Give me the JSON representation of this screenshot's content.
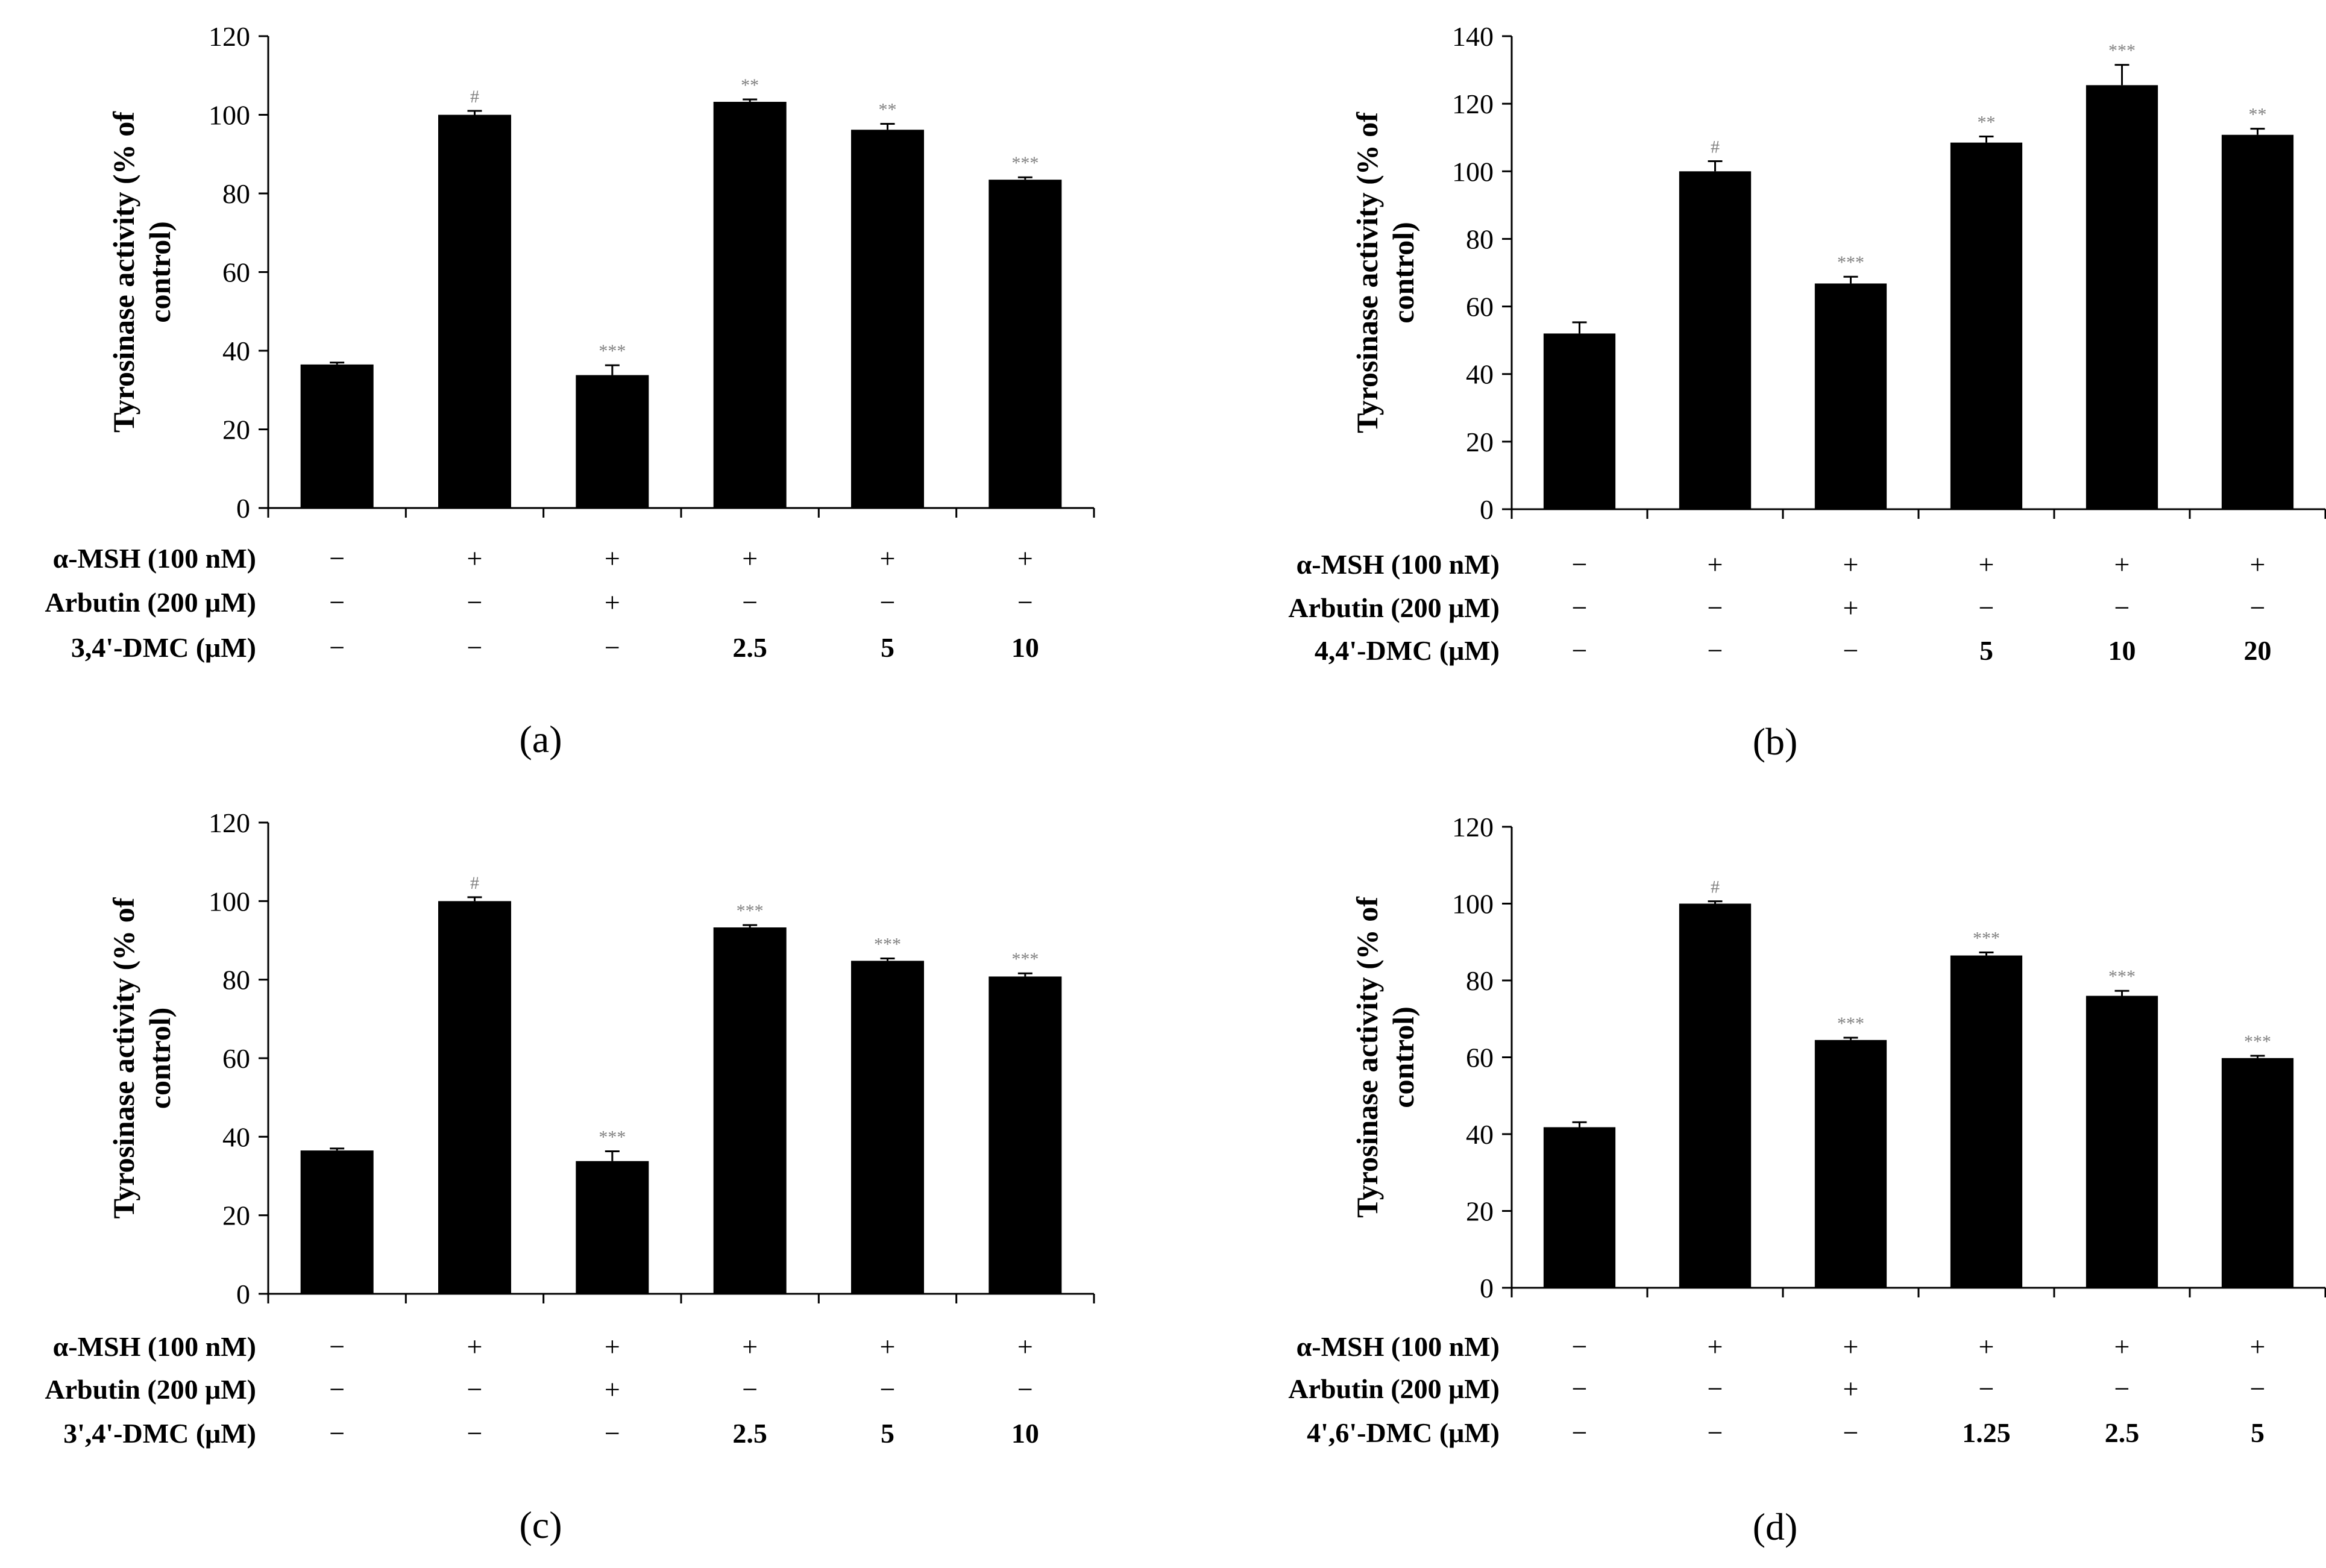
{
  "chart_data": [
    {
      "type": "bar",
      "panel_label": "(a)",
      "ylabel_line1": "Tyrosinase activity (% of",
      "ylabel_line2": "control)",
      "ylim": [
        0,
        120
      ],
      "yticks": [
        "0",
        "20",
        "40",
        "60",
        "80",
        "100",
        "120"
      ],
      "values": [
        36.5,
        100,
        33.8,
        103.3,
        96.2,
        83.5
      ],
      "errors": [
        0.5,
        1.0,
        2.5,
        0.6,
        1.5,
        0.6
      ],
      "significance": [
        "",
        "#",
        "***",
        "**",
        "**",
        "***"
      ],
      "treatment_rows": [
        {
          "label": "α-MSH (100 nM)",
          "cells": [
            "−",
            "+",
            "+",
            "+",
            "+",
            "+"
          ]
        },
        {
          "label": "Arbutin (200 μM)",
          "cells": [
            "−",
            "−",
            "+",
            "−",
            "−",
            "−"
          ]
        },
        {
          "label": "3,4'-DMC (μM)",
          "cells": [
            "−",
            "−",
            "−",
            "2.5",
            "5",
            "10"
          ]
        }
      ]
    },
    {
      "type": "bar",
      "panel_label": "(b)",
      "ylabel_line1": "Tyrosinase activity (% of",
      "ylabel_line2": "control)",
      "ylim": [
        0,
        140
      ],
      "yticks": [
        "0",
        "20",
        "40",
        "60",
        "80",
        "100",
        "120",
        "140"
      ],
      "values": [
        52,
        100,
        66.8,
        108.5,
        125.5,
        110.8
      ],
      "errors": [
        3.3,
        3.0,
        2.0,
        1.8,
        6.0,
        1.8
      ],
      "significance": [
        "",
        "#",
        "***",
        "**",
        "***",
        "**"
      ],
      "treatment_rows": [
        {
          "label": "α-MSH (100 nM)",
          "cells": [
            "−",
            "+",
            "+",
            "+",
            "+",
            "+"
          ]
        },
        {
          "label": "Arbutin (200 μM)",
          "cells": [
            "−",
            "−",
            "+",
            "−",
            "−",
            "−"
          ]
        },
        {
          "label": "4,4'-DMC (μM)",
          "cells": [
            "−",
            "−",
            "−",
            "5",
            "10",
            "20"
          ]
        }
      ]
    },
    {
      "type": "bar",
      "panel_label": "(c)",
      "ylabel_line1": "Tyrosinase activity (% of",
      "ylabel_line2": "control)",
      "ylim": [
        0,
        120
      ],
      "yticks": [
        "0",
        "20",
        "40",
        "60",
        "80",
        "100",
        "120"
      ],
      "values": [
        36.5,
        100,
        33.8,
        93.3,
        84.8,
        80.8
      ],
      "errors": [
        0.5,
        1.0,
        2.5,
        0.6,
        0.6,
        0.8
      ],
      "significance": [
        "",
        "#",
        "***",
        "***",
        "***",
        "***"
      ],
      "treatment_rows": [
        {
          "label": "α-MSH (100 nM)",
          "cells": [
            "−",
            "+",
            "+",
            "+",
            "+",
            "+"
          ]
        },
        {
          "label": "Arbutin (200 μM)",
          "cells": [
            "−",
            "−",
            "+",
            "−",
            "−",
            "−"
          ]
        },
        {
          "label": "3',4'-DMC (μM)",
          "cells": [
            "−",
            "−",
            "−",
            "2.5",
            "5",
            "10"
          ]
        }
      ]
    },
    {
      "type": "bar",
      "panel_label": "(d)",
      "ylabel_line1": "Tyrosinase activity (% of",
      "ylabel_line2": "control)",
      "ylim": [
        0,
        120
      ],
      "yticks": [
        "0",
        "20",
        "40",
        "60",
        "80",
        "100",
        "120"
      ],
      "values": [
        41.8,
        100,
        64.5,
        86.5,
        76,
        59.8
      ],
      "errors": [
        1.3,
        0.6,
        0.6,
        0.8,
        1.3,
        0.6
      ],
      "significance": [
        "",
        "#",
        "***",
        "***",
        "***",
        "***"
      ],
      "treatment_rows": [
        {
          "label": "α-MSH (100 nM)",
          "cells": [
            "−",
            "+",
            "+",
            "+",
            "+",
            "+"
          ]
        },
        {
          "label": "Arbutin (200 μM)",
          "cells": [
            "−",
            "−",
            "+",
            "−",
            "−",
            "−"
          ]
        },
        {
          "label": "4',6'-DMC (μM)",
          "cells": [
            "−",
            "−",
            "−",
            "1.25",
            "2.5",
            "5"
          ]
        }
      ]
    }
  ]
}
